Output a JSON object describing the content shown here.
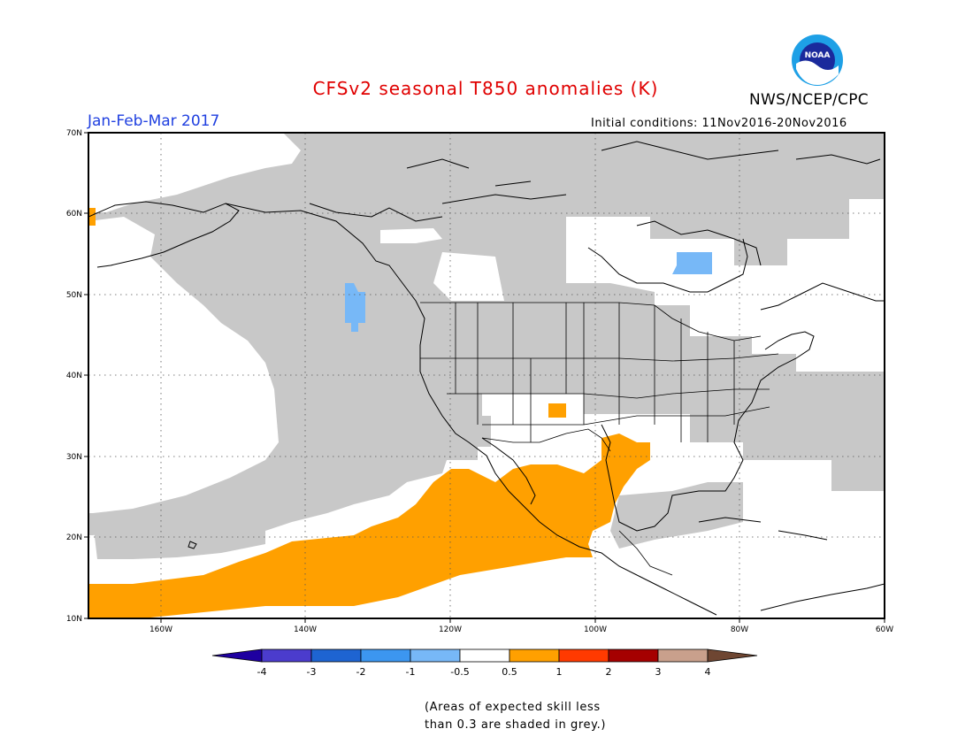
{
  "header": {
    "title": "CFSv2 seasonal T850 anomalies (K)",
    "period": "Jan-Feb-Mar 2017",
    "initial_conditions": "Initial conditions: 11Nov2016-20Nov2016",
    "agency": "NWS/NCEP/CPC",
    "logo_text": "NOAA"
  },
  "map": {
    "lon_range": [
      -170,
      -60
    ],
    "lat_range": [
      10,
      70
    ],
    "lon_ticks": [
      "160W",
      "140W",
      "120W",
      "100W",
      "80W",
      "60W"
    ],
    "lat_ticks": [
      "70N",
      "60N",
      "50N",
      "40N",
      "30N",
      "20N",
      "10N"
    ],
    "colors": {
      "low_skill_grey": "#c8c8c8",
      "anom_pos_0_5_to_1": "#ffa000",
      "anom_neg_1_to_0_5": "#77b8f7"
    }
  },
  "colorbar": {
    "labels": [
      "-4",
      "-3",
      "-2",
      "-1",
      "-0.5",
      "0.5",
      "1",
      "2",
      "3",
      "4"
    ],
    "colors": [
      "#1e00a0",
      "#4b3ccd",
      "#1e64d2",
      "#3c96f0",
      "#77b8f7",
      "#ffffff",
      "#ffa000",
      "#ff3a00",
      "#a50000",
      "#c9a08c",
      "#6e4632"
    ]
  },
  "footnote": {
    "line1": "(Areas of expected skill less",
    "line2": "than 0.3 are shaded in grey.)"
  }
}
